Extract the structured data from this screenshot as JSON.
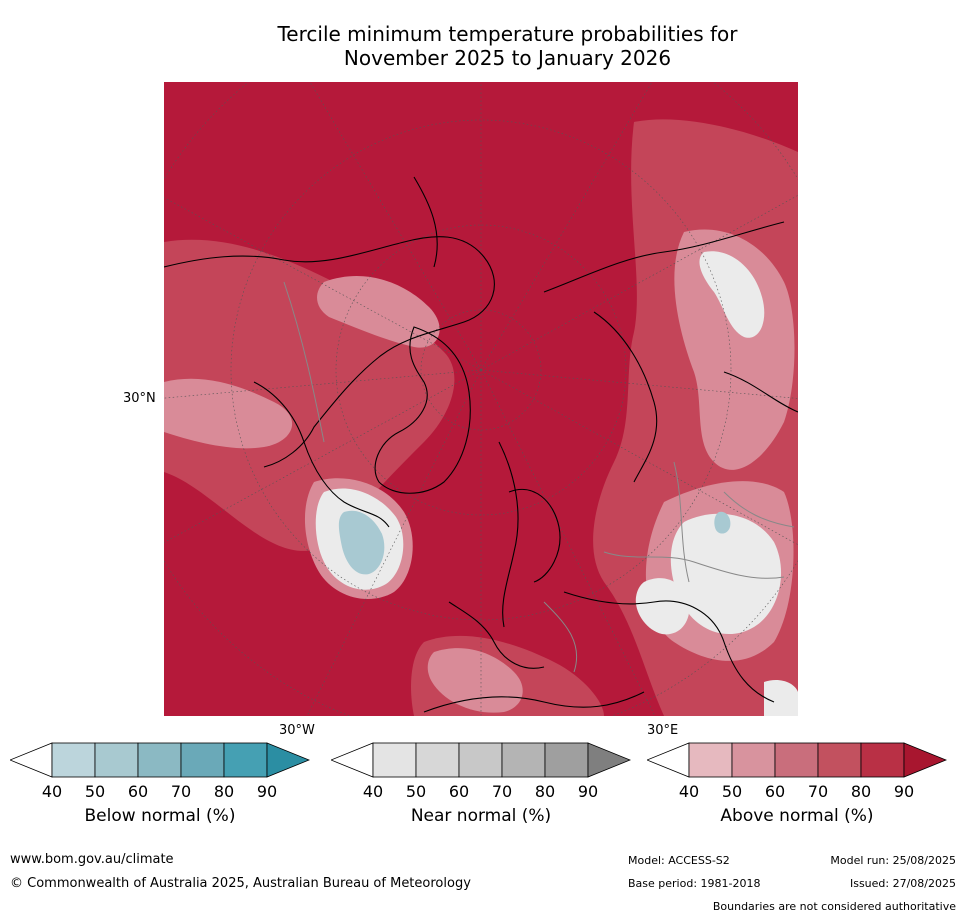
{
  "title": {
    "line1": "Tercile minimum temperature probabilities for",
    "line2": "November 2025 to January 2026"
  },
  "map": {
    "projection": "north-polar-stereographic",
    "lat_label": "30°N",
    "lon_labels": [
      "30°W",
      "30°E"
    ],
    "colors": {
      "above_deep": "#b5193a",
      "above_mid": "#c44559",
      "above_light": "#d98b98",
      "near": "#ebebeb",
      "below": "#a8c9d2"
    }
  },
  "colorbars": [
    {
      "label": "Below normal (%)",
      "ticks": [
        "40",
        "50",
        "60",
        "70",
        "80",
        "90"
      ],
      "colors": [
        "#ffffff",
        "#bcd5dc",
        "#a8c9d0",
        "#8bb9c3",
        "#6aa9b8",
        "#45a0b3",
        "#2b8ea3"
      ]
    },
    {
      "label": "Near normal (%)",
      "ticks": [
        "40",
        "50",
        "60",
        "70",
        "80",
        "90"
      ],
      "colors": [
        "#ffffff",
        "#e4e4e4",
        "#d7d7d7",
        "#c8c8c8",
        "#b4b4b4",
        "#9f9f9f",
        "#7f7f7f"
      ]
    },
    {
      "label": "Above normal (%)",
      "ticks": [
        "40",
        "50",
        "60",
        "70",
        "80",
        "90"
      ],
      "colors": [
        "#ffffff",
        "#e6b9bf",
        "#d8939e",
        "#c96e7c",
        "#c2515f",
        "#b93045",
        "#a8162f"
      ]
    }
  ],
  "footer": {
    "url": "www.bom.gov.au/climate",
    "copyright": "© Commonwealth of Australia 2025, Australian Bureau of Meteorology",
    "model": "Model: ACCESS-S2",
    "base_period": "Base period: 1981-2018",
    "model_run": "Model run: 25/08/2025",
    "issued": "Issued: 27/08/2025",
    "disclaimer": "Boundaries are not considered authoritative"
  }
}
